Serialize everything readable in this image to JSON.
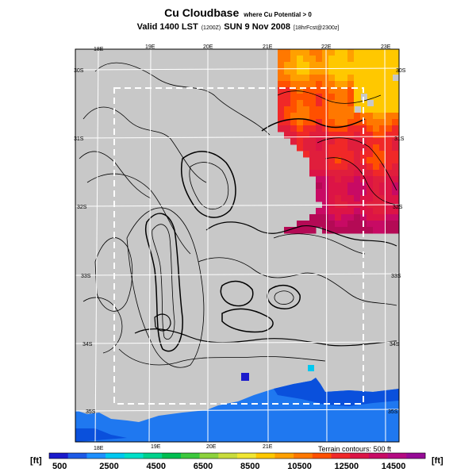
{
  "header": {
    "title": "Cu Cloudbase",
    "title_note": "where Cu Potential > 0",
    "subtitle": "Valid 1400 LST",
    "subtitle_utc": "(1200Z)",
    "subtitle_date": "SUN 9 Nov 2008",
    "subtitle_run": "[18hrFcst@2300z]"
  },
  "map": {
    "longitude_labels_top": [
      "18E",
      "19E",
      "20E",
      "21E",
      "22E",
      "23E"
    ],
    "longitude_labels_bottom": [
      "18E",
      "19E",
      "20E",
      "21E"
    ],
    "latitude_labels_left": [
      "30S",
      "31S",
      "32S",
      "33S",
      "34S",
      "35S"
    ],
    "latitude_labels_right": [
      "30S",
      "31S",
      "32S",
      "33S",
      "34S",
      "35S"
    ],
    "terrain_note": "Terrain contours: 500 ft",
    "colors": {
      "land": "#c8c8c8",
      "ocean": "#1f78f0",
      "deep_ocean": "#0a50dc",
      "grid": "#ffffff",
      "domain_box": "#ffffff"
    }
  },
  "colorbar": {
    "unit_left": "[ft]",
    "unit_right": "[ft]",
    "tick_labels": [
      "500",
      "2500",
      "4500",
      "6500",
      "8500",
      "10500",
      "12500",
      "14500"
    ],
    "colors": [
      "#1a1acc",
      "#1e5ae6",
      "#1e90ff",
      "#00c8f0",
      "#00e0c8",
      "#00d28c",
      "#00be50",
      "#3cc83c",
      "#8cd23c",
      "#c8dc3c",
      "#f0e632",
      "#ffc800",
      "#ffa000",
      "#ff7800",
      "#ff5000",
      "#f02828",
      "#dc1446",
      "#c80a64",
      "#b40a82",
      "#960a96"
    ]
  }
}
